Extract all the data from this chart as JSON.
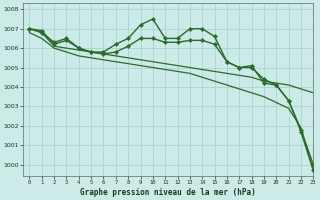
{
  "title": "Graphe pression niveau de la mer (hPa)",
  "bg_color": "#cceae7",
  "grid_color": "#aad4d0",
  "line_color": "#2d6a2d",
  "xlim": [
    -0.5,
    23
  ],
  "ylim": [
    999.4,
    1008.3
  ],
  "yticks": [
    1000,
    1001,
    1002,
    1003,
    1004,
    1005,
    1006,
    1007,
    1008
  ],
  "xticks": [
    0,
    1,
    2,
    3,
    4,
    5,
    6,
    7,
    8,
    9,
    10,
    11,
    12,
    13,
    14,
    15,
    16,
    17,
    18,
    19,
    20,
    21,
    22,
    23
  ],
  "series": [
    {
      "y": [
        1007.0,
        1006.8,
        1006.3,
        1006.5,
        1006.0,
        1005.8,
        1005.8,
        1006.2,
        1006.5,
        1007.2,
        1007.5,
        1006.5,
        1006.5,
        1007.0,
        1007.0,
        1006.6,
        1005.3,
        1005.0,
        1005.1,
        1004.2,
        1004.1,
        1003.3,
        1001.8,
        1000.0
      ],
      "marker": true,
      "linewidth": 1.0
    },
    {
      "y": [
        1007.0,
        1006.9,
        1006.2,
        1006.4,
        1006.0,
        1005.8,
        1005.7,
        1005.8,
        1006.1,
        1006.5,
        1006.5,
        1006.3,
        1006.3,
        1006.4,
        1006.4,
        1006.2,
        1005.3,
        1005.0,
        1005.0,
        1004.4,
        1004.1,
        1003.3,
        1001.7,
        999.7
      ],
      "marker": true,
      "linewidth": 1.0
    },
    {
      "y": [
        1007.0,
        1006.8,
        1006.1,
        1006.0,
        1005.9,
        1005.8,
        1005.7,
        1005.6,
        1005.5,
        1005.4,
        1005.3,
        1005.2,
        1005.1,
        1005.0,
        1004.9,
        1004.8,
        1004.7,
        1004.6,
        1004.5,
        1004.3,
        1004.2,
        1004.1,
        1003.9,
        1003.7
      ],
      "marker": false,
      "linewidth": 0.9
    },
    {
      "y": [
        1006.8,
        1006.5,
        1006.0,
        1005.8,
        1005.6,
        1005.5,
        1005.4,
        1005.3,
        1005.2,
        1005.1,
        1005.0,
        1004.9,
        1004.8,
        1004.7,
        1004.5,
        1004.3,
        1004.1,
        1003.9,
        1003.7,
        1003.5,
        1003.2,
        1002.9,
        1001.9,
        999.7
      ],
      "marker": false,
      "linewidth": 0.9
    }
  ]
}
